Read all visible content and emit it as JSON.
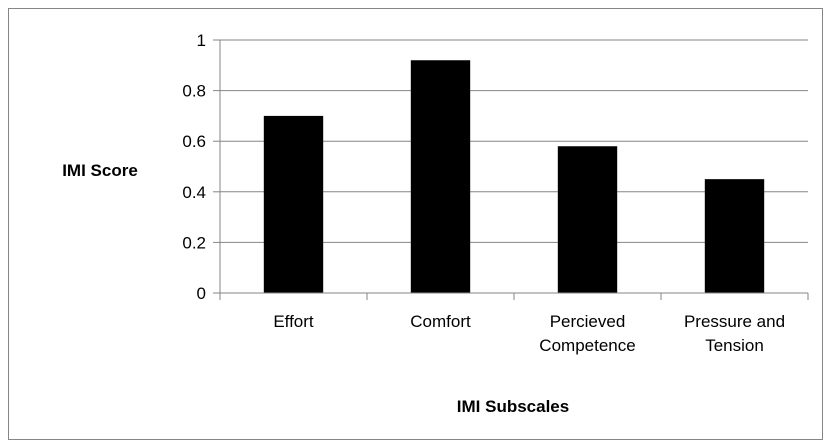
{
  "chart_data": {
    "type": "bar",
    "title": "",
    "xlabel": "IMI Subscales",
    "ylabel": "IMI Score",
    "categories": [
      [
        "Effort"
      ],
      [
        "Comfort"
      ],
      [
        "Percieved",
        "Competence"
      ],
      [
        "Pressure and",
        "Tension"
      ]
    ],
    "values": [
      0.7,
      0.92,
      0.58,
      0.45
    ],
    "ylim": [
      0,
      1
    ],
    "yticks": [
      "0",
      "0.2",
      "0.4",
      "0.6",
      "0.8",
      "1"
    ],
    "ytick_values": [
      0,
      0.2,
      0.4,
      0.6,
      0.8,
      1
    ],
    "grid": true,
    "legend": "none",
    "colors": {
      "bar": "#000000",
      "grid": "#868686",
      "axis": "#868686"
    }
  }
}
